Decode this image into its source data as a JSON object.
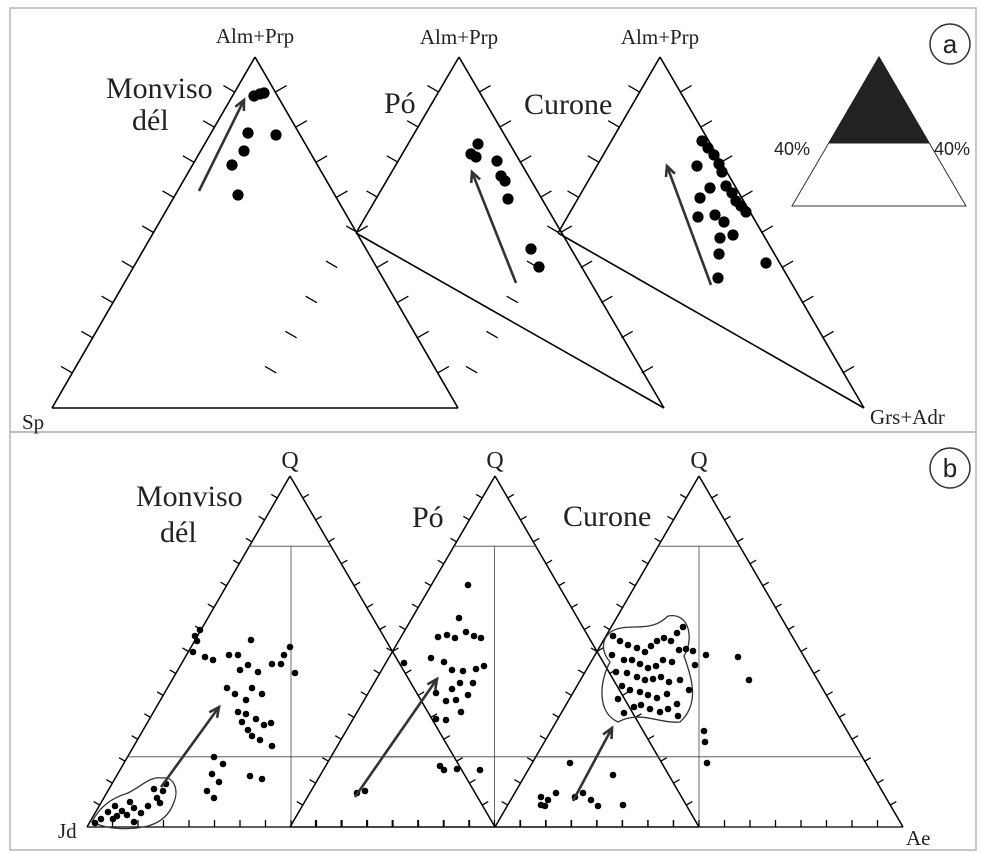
{
  "panel_a": {
    "panel_label": "a",
    "apex_labels": [
      "Alm+Prp",
      "Alm+Prp",
      "Alm+Prp"
    ],
    "corner_left": "Sp",
    "corner_right": "Grs+Adr",
    "diagram_titles": [
      "Monviso\ndél",
      "Pó",
      "Curone"
    ],
    "inset": {
      "left_label": "40%",
      "right_label": "40%"
    }
  },
  "panel_b": {
    "panel_label": "b",
    "apex_labels": [
      "Q",
      "Q",
      "Q"
    ],
    "corner_left": "Jd",
    "corner_right": "Ae",
    "diagram_titles": [
      "Monviso\ndél",
      "Pó",
      "Curone"
    ]
  },
  "colors": {
    "ink": "#000000",
    "arrow": "#333333",
    "frame": "#b5b5b5",
    "inset_fill": "#222222"
  }
}
